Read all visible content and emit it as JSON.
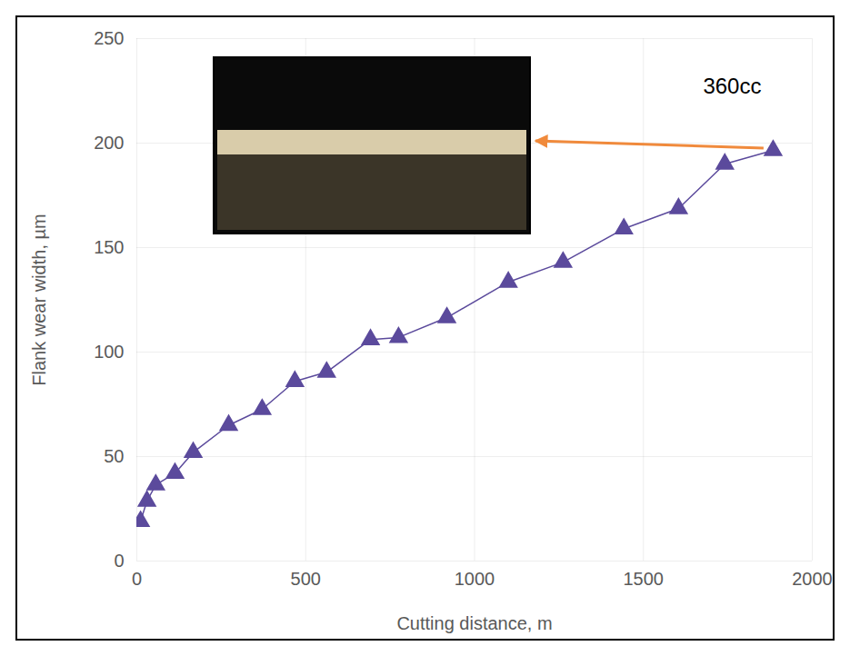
{
  "chart_data": {
    "type": "line",
    "x_label": "Cutting distance, m",
    "y_label": "Flank wear width, µm",
    "x": [
      11,
      30,
      56,
      113,
      167,
      272,
      371,
      468,
      562,
      692,
      775,
      918,
      1100,
      1262,
      1442,
      1604,
      1741,
      1884
    ],
    "values": [
      19,
      28.7,
      36.5,
      42,
      52,
      65,
      72.6,
      86,
      90.4,
      106,
      107,
      116.5,
      133.5,
      143,
      159,
      168.7,
      190,
      196.5
    ],
    "color": "#5b4a9c",
    "marker": "triangle",
    "xlim": [
      0,
      2000
    ],
    "xticks": [
      0,
      500,
      1000,
      1500,
      2000
    ],
    "ylim": [
      0,
      250
    ],
    "yticks": [
      0,
      50,
      100,
      150,
      200,
      250
    ],
    "grid": true,
    "annotations": [
      {
        "text": "360cc"
      }
    ]
  }
}
